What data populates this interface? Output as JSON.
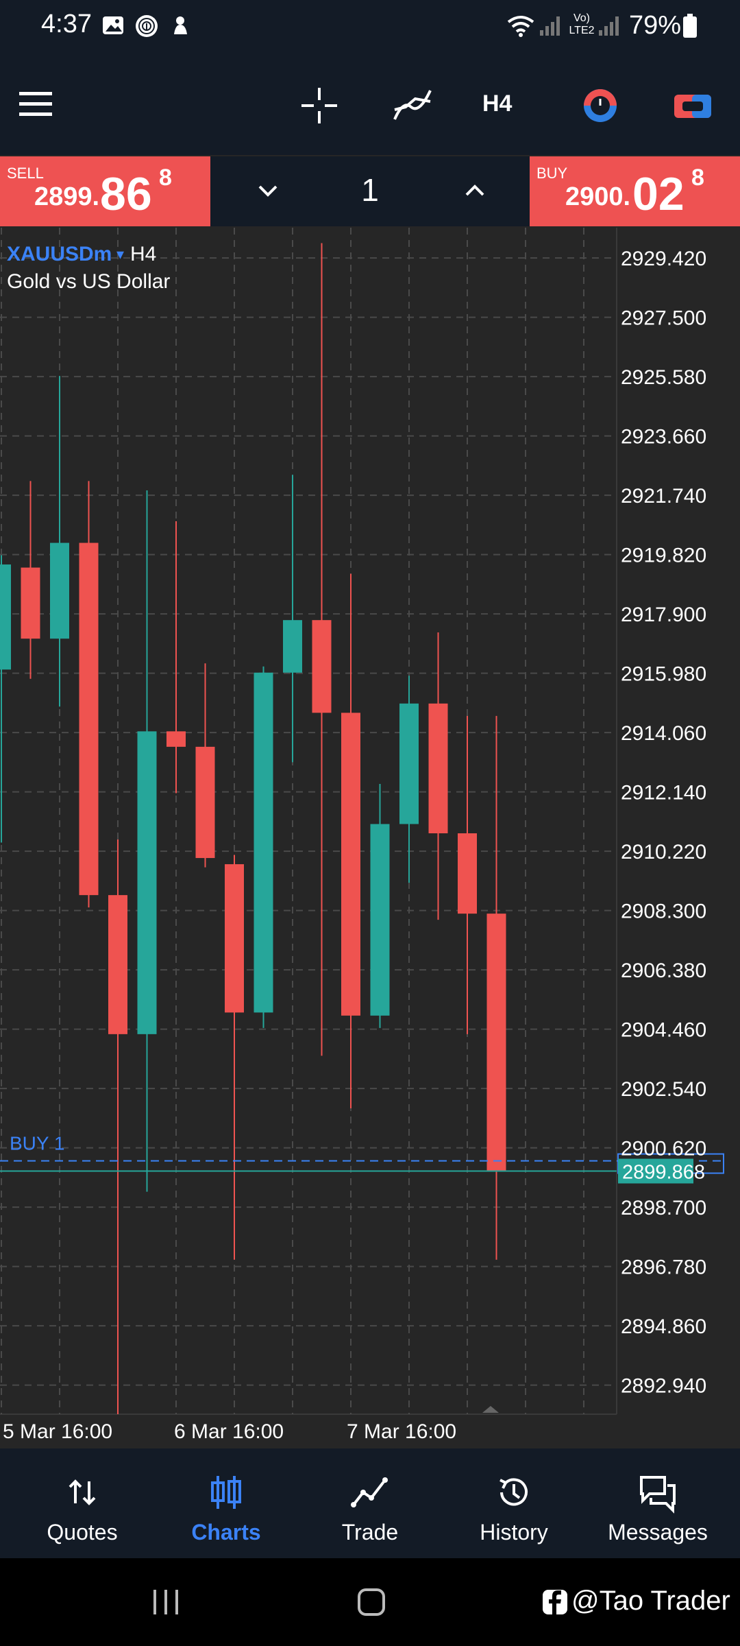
{
  "status_bar": {
    "time": "4:37",
    "network": "Vo) LTE2",
    "battery": "79%",
    "icons": [
      "gallery-icon",
      "fingerprint-icon",
      "app-notification-icon",
      "wifi-icon",
      "signal-icon",
      "battery-icon"
    ]
  },
  "toolbar": {
    "icons": [
      "menu-icon",
      "crosshair-icon",
      "indicators-icon",
      "timeframe",
      "clock-icon",
      "chart-type-icon"
    ],
    "timeframe": "H4"
  },
  "trade_panel": {
    "sell_label": "SELL",
    "sell_price_small": "2899.",
    "sell_price_big": "86",
    "sell_price_sup": "8",
    "buy_label": "BUY",
    "buy_price_small": "2900.",
    "buy_price_big": "02",
    "buy_price_sup": "8",
    "lot": "1"
  },
  "chart_header": {
    "symbol": "XAUUSDm",
    "symbol_caret": "▾",
    "timeframe": "H4",
    "description": "Gold vs US Dollar"
  },
  "chart_data": {
    "type": "candlestick",
    "y_axis_ticks": [
      "2929.420",
      "2927.500",
      "2925.580",
      "2923.660",
      "2921.740",
      "2919.820",
      "2917.900",
      "2915.980",
      "2914.060",
      "2912.140",
      "2910.220",
      "2908.300",
      "2906.380",
      "2904.460",
      "2902.540",
      "2900.620",
      "2898.700",
      "2896.780",
      "2894.860",
      "2892.940"
    ],
    "ylim": [
      2892.0,
      2930.4
    ],
    "x_axis_labels": [
      "5 Mar 16:00",
      "6 Mar 16:00",
      "7 Mar 16:00"
    ],
    "current_price_label": "2899.868",
    "position_line": {
      "label": "BUY 1",
      "price": 2900.2
    },
    "colors": {
      "up": "#26a69a",
      "down": "#ef5350",
      "position": "#3b82f6"
    },
    "candles": [
      {
        "open": 2916.1,
        "high": 2919.8,
        "low": 2910.5,
        "close": 2919.5
      },
      {
        "open": 2919.4,
        "high": 2922.2,
        "low": 2915.8,
        "close": 2917.1
      },
      {
        "open": 2917.1,
        "high": 2925.6,
        "low": 2914.9,
        "close": 2920.2
      },
      {
        "open": 2920.2,
        "high": 2922.2,
        "low": 2908.4,
        "close": 2908.8
      },
      {
        "open": 2908.8,
        "high": 2910.6,
        "low": 2892.0,
        "close": 2904.3
      },
      {
        "open": 2904.3,
        "high": 2921.9,
        "low": 2899.2,
        "close": 2914.1
      },
      {
        "open": 2914.1,
        "high": 2920.9,
        "low": 2912.1,
        "close": 2913.6
      },
      {
        "open": 2913.6,
        "high": 2916.3,
        "low": 2909.7,
        "close": 2910.0
      },
      {
        "open": 2909.8,
        "high": 2910.1,
        "low": 2897.0,
        "close": 2905.0
      },
      {
        "open": 2905.0,
        "high": 2916.2,
        "low": 2904.5,
        "close": 2916.0
      },
      {
        "open": 2916.0,
        "high": 2922.4,
        "low": 2913.1,
        "close": 2917.7
      },
      {
        "open": 2917.7,
        "high": 2929.9,
        "low": 2903.6,
        "close": 2914.7
      },
      {
        "open": 2914.7,
        "high": 2919.2,
        "low": 2901.9,
        "close": 2904.9
      },
      {
        "open": 2904.9,
        "high": 2912.4,
        "low": 2904.5,
        "close": 2911.1
      },
      {
        "open": 2911.1,
        "high": 2915.9,
        "low": 2909.2,
        "close": 2915.0
      },
      {
        "open": 2915.0,
        "high": 2917.3,
        "low": 2908.0,
        "close": 2910.8
      },
      {
        "open": 2910.8,
        "high": 2914.6,
        "low": 2904.3,
        "close": 2908.2
      },
      {
        "open": 2908.2,
        "high": 2914.6,
        "low": 2897.0,
        "close": 2899.87
      }
    ]
  },
  "bottom_nav": [
    {
      "label": "Quotes",
      "icon": "quotes-icon",
      "active": false
    },
    {
      "label": "Charts",
      "icon": "charts-icon",
      "active": true
    },
    {
      "label": "Trade",
      "icon": "trade-icon",
      "active": false
    },
    {
      "label": "History",
      "icon": "history-icon",
      "active": false
    },
    {
      "label": "Messages",
      "icon": "messages-icon",
      "active": false
    }
  ],
  "watermark": "@Tao Trader",
  "accent_color": "#3b82f6",
  "sell_color": "#ee5252"
}
